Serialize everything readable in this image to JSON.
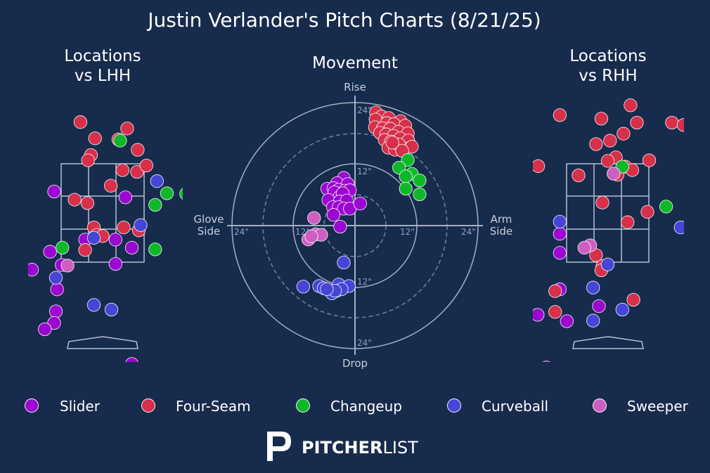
{
  "title": "Justin Verlander's Pitch Charts (8/21/25)",
  "panels": {
    "lhh_title": [
      "Locations",
      "vs LHH"
    ],
    "movement_title": "Movement",
    "rhh_title": [
      "Locations",
      "vs RHH"
    ]
  },
  "movement_axes": {
    "top": "Rise",
    "bottom": "Drop",
    "left": [
      "Glove",
      "Side"
    ],
    "right": [
      "Arm",
      "Side"
    ],
    "ring_labels": [
      "24\"",
      "12\"",
      "12\"",
      "24\"",
      "12\"",
      "24\"",
      "12\"",
      "24\""
    ]
  },
  "brand": {
    "logo_letter": "P",
    "name_bold": "PITCHER",
    "name_light": "LIST"
  },
  "colors": {
    "background": "#172b4d",
    "Slider": "#9b07d0",
    "Four-Seam": "#d6304a",
    "Changeup": "#0fb82a",
    "Curveball": "#4645d6",
    "Sweeper": "#cc5fc0"
  },
  "chart_data": [
    {
      "type": "scatter",
      "title": "Locations vs LHH",
      "note": "pitch locations, x = horizontal location (ft, catcher view), y = height (ft)",
      "series": [
        {
          "name": "Slider",
          "points": [
            [
              -0.83,
              3.02
            ],
            [
              0.39,
              2.92
            ],
            [
              -0.9,
              1.98
            ],
            [
              -1.21,
              1.67
            ],
            [
              -0.7,
              1.75
            ],
            [
              0.22,
              2.19
            ],
            [
              0.5,
              2.05
            ],
            [
              0.22,
              1.77
            ],
            [
              -0.3,
              2.19
            ],
            [
              -0.78,
              1.33
            ],
            [
              -1.59,
              1.26
            ],
            [
              -0.8,
              0.95
            ],
            [
              -0.83,
              0.75
            ],
            [
              -0.99,
              0.64
            ],
            [
              0.5,
              0.04
            ]
          ]
        },
        {
          "name": "Four-Seam",
          "points": [
            [
              -0.55,
              4.93
            ],
            [
              0.13,
              4.9
            ],
            [
              -0.38,
              4.22
            ],
            [
              -0.13,
              3.94
            ],
            [
              0.42,
              4.11
            ],
            [
              0.27,
              3.92
            ],
            [
              0.6,
              3.74
            ],
            [
              -0.2,
              3.65
            ],
            [
              -0.25,
              3.56
            ],
            [
              0.34,
              3.39
            ],
            [
              0.59,
              3.36
            ],
            [
              0.14,
              3.12
            ],
            [
              0.75,
              3.47
            ],
            [
              -0.48,
              2.88
            ],
            [
              -0.26,
              2.82
            ],
            [
              -0.15,
              2.4
            ],
            [
              0.36,
              2.4
            ],
            [
              0.62,
              2.35
            ],
            [
              -0.1,
              2.27
            ],
            [
              0.0,
              2.25
            ],
            [
              -0.3,
              2.01
            ]
          ]
        },
        {
          "name": "Changeup",
          "points": [
            [
              0.3,
              3.9
            ],
            [
              1.1,
              2.99
            ],
            [
              1.43,
              2.98
            ],
            [
              0.9,
              2.79
            ],
            [
              -0.69,
              2.05
            ],
            [
              0.9,
              2.02
            ]
          ]
        },
        {
          "name": "Curveball",
          "points": [
            [
              0.93,
              3.2
            ],
            [
              0.65,
              2.44
            ],
            [
              -0.15,
              2.22
            ],
            [
              -0.8,
              1.53
            ],
            [
              -0.15,
              1.06
            ],
            [
              0.15,
              0.98
            ]
          ]
        },
        {
          "name": "Sweeper",
          "points": [
            [
              -0.6,
              1.74
            ]
          ]
        }
      ]
    },
    {
      "type": "scatter",
      "title": "Movement",
      "note": "pitch movement in inches; x negative = glove side, positive = arm side",
      "xlim": [
        -24,
        24
      ],
      "ylim": [
        -24,
        24
      ],
      "series": [
        {
          "name": "Slider",
          "points": [
            [
              -2.2,
              9.3
            ],
            [
              -3.5,
              8.3
            ],
            [
              -1.4,
              8.1
            ],
            [
              -5.4,
              7.2
            ],
            [
              -4.2,
              7.3
            ],
            [
              -3.2,
              7.0
            ],
            [
              -2.0,
              6.8
            ],
            [
              -4.0,
              6.5
            ],
            [
              -1.0,
              6.9
            ],
            [
              -3.0,
              5.6
            ],
            [
              -2.4,
              6.3
            ],
            [
              -5.2,
              5.0
            ],
            [
              -3.0,
              4.7
            ],
            [
              -1.6,
              4.9
            ],
            [
              -4.3,
              3.6
            ],
            [
              -3.2,
              3.6
            ],
            [
              -2.2,
              3.3
            ],
            [
              -1.0,
              3.3
            ],
            [
              1.0,
              4.3
            ],
            [
              -4.2,
              2.1
            ],
            [
              -2.9,
              -0.2
            ]
          ]
        },
        {
          "name": "Four-Seam",
          "points": [
            [
              4.1,
              22.1
            ],
            [
              5.2,
              21.3
            ],
            [
              6.6,
              21.0
            ],
            [
              8.9,
              20.4
            ],
            [
              4.0,
              20.7
            ],
            [
              6.2,
              20.0
            ],
            [
              7.6,
              19.8
            ],
            [
              9.8,
              19.5
            ],
            [
              3.9,
              19.2
            ],
            [
              5.4,
              19.0
            ],
            [
              6.9,
              18.9
            ],
            [
              8.5,
              18.3
            ],
            [
              10.3,
              18.0
            ],
            [
              4.9,
              18.1
            ],
            [
              6.1,
              17.8
            ],
            [
              7.5,
              17.5
            ],
            [
              8.8,
              17.0
            ],
            [
              10.4,
              16.6
            ],
            [
              5.8,
              16.7
            ],
            [
              7.0,
              16.4
            ],
            [
              8.2,
              15.8
            ],
            [
              9.5,
              15.1
            ],
            [
              11.1,
              15.4
            ],
            [
              6.5,
              15.2
            ],
            [
              7.8,
              14.8
            ],
            [
              8.6,
              15.8
            ],
            [
              9.2,
              14.6
            ],
            [
              7.3,
              16.2
            ]
          ]
        },
        {
          "name": "Changeup",
          "points": [
            [
              10.3,
              12.8
            ],
            [
              11.1,
              10.1
            ],
            [
              8.6,
              11.3
            ],
            [
              9.9,
              9.6
            ],
            [
              12.6,
              8.8
            ],
            [
              9.9,
              7.2
            ],
            [
              12.6,
              6.1
            ]
          ]
        },
        {
          "name": "Curveball",
          "points": [
            [
              -2.2,
              -7.2
            ],
            [
              -10.1,
              -11.9
            ],
            [
              -7.0,
              -11.8
            ],
            [
              -6.1,
              -12.2
            ],
            [
              -3.2,
              -11.5
            ],
            [
              -3.5,
              -12.7
            ],
            [
              -1.2,
              -11.8
            ],
            [
              -2.6,
              -12.4
            ],
            [
              -4.5,
              -13.2
            ],
            [
              -3.9,
              -12.7
            ],
            [
              -5.5,
              -12.4
            ]
          ]
        },
        {
          "name": "Sweeper",
          "points": [
            [
              -8.0,
              1.5
            ],
            [
              -7.7,
              -1.7
            ],
            [
              -6.6,
              -1.8
            ],
            [
              -9.1,
              -2.7
            ],
            [
              -8.5,
              -2.1
            ]
          ]
        }
      ]
    },
    {
      "type": "scatter",
      "title": "Locations vs RHH",
      "note": "pitch locations, x = horizontal location (ft, catcher view), y = height (ft)",
      "series": [
        {
          "name": "Slider",
          "points": [
            [
              -1.45,
              2.26
            ],
            [
              -0.82,
              2.29
            ],
            [
              -0.82,
              1.96
            ],
            [
              -0.82,
              1.33
            ],
            [
              -1.2,
              0.89
            ],
            [
              -0.7,
              0.78
            ],
            [
              -0.15,
              1.04
            ],
            [
              -1.05,
              -0.02
            ]
          ]
        },
        {
          "name": "Four-Seam",
          "points": [
            [
              -0.82,
              4.34
            ],
            [
              -0.11,
              4.28
            ],
            [
              0.39,
              4.51
            ],
            [
              0.5,
              4.21
            ],
            [
              0.27,
              4.02
            ],
            [
              1.1,
              4.21
            ],
            [
              1.3,
              4.17
            ],
            [
              -0.2,
              3.84
            ],
            [
              0.04,
              3.9
            ],
            [
              0.14,
              3.61
            ],
            [
              0.0,
              3.55
            ],
            [
              0.71,
              3.56
            ],
            [
              0.3,
              3.45
            ],
            [
              0.42,
              3.39
            ],
            [
              0.17,
              3.31
            ],
            [
              -1.19,
              3.46
            ],
            [
              -0.5,
              3.3
            ],
            [
              -0.09,
              2.83
            ],
            [
              0.68,
              2.67
            ],
            [
              0.34,
              2.49
            ],
            [
              -0.2,
              1.92
            ],
            [
              -0.09,
              1.73
            ],
            [
              -0.11,
              1.66
            ],
            [
              -0.9,
              1.3
            ],
            [
              0.44,
              1.15
            ],
            [
              -0.9,
              0.94
            ]
          ]
        },
        {
          "name": "Changeup",
          "points": [
            [
              1.0,
              2.76
            ],
            [
              0.25,
              3.45
            ]
          ]
        },
        {
          "name": "Curveball",
          "points": [
            [
              -0.82,
              2.5
            ],
            [
              1.25,
              2.4
            ],
            [
              0.0,
              1.76
            ],
            [
              -0.25,
              1.36
            ],
            [
              0.25,
              0.98
            ],
            [
              -0.25,
              0.79
            ]
          ]
        },
        {
          "name": "Sweeper",
          "points": [
            [
              -1.45,
              2.44
            ],
            [
              -0.3,
              2.09
            ],
            [
              -0.4,
              2.05
            ],
            [
              0.1,
              3.33
            ]
          ]
        }
      ]
    }
  ]
}
